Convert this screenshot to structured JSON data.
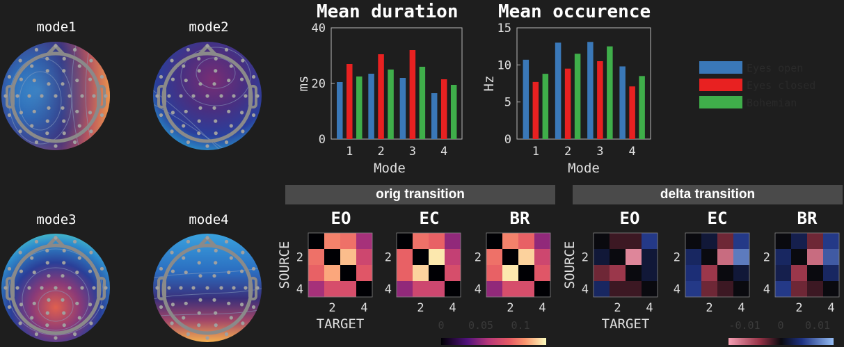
{
  "topomaps": [
    {
      "label": "mode1"
    },
    {
      "label": "mode2"
    },
    {
      "label": "mode3"
    },
    {
      "label": "mode4"
    }
  ],
  "chart_data": [
    {
      "type": "bar",
      "title": "Mean duration",
      "xlabel": "Mode",
      "ylabel": "ms",
      "categories": [
        "1",
        "2",
        "3",
        "4"
      ],
      "ylim": [
        0,
        40
      ],
      "yticks": [
        0,
        20,
        40
      ],
      "series": [
        {
          "name": "Eyes open",
          "color": "#3a78b8",
          "values": [
            20.5,
            23.5,
            22,
            16.5
          ]
        },
        {
          "name": "Eyes closed",
          "color": "#e82121",
          "values": [
            27,
            30.5,
            32,
            21.5
          ]
        },
        {
          "name": "Bohemian",
          "color": "#3fae4a",
          "values": [
            22.5,
            25,
            26,
            19.5
          ]
        }
      ]
    },
    {
      "type": "bar",
      "title": "Mean occurence",
      "xlabel": "Mode",
      "ylabel": "Hz",
      "categories": [
        "1",
        "2",
        "3",
        "4"
      ],
      "ylim": [
        0,
        15
      ],
      "yticks": [
        0,
        5,
        10,
        15
      ],
      "series": [
        {
          "name": "Eyes open",
          "color": "#3a78b8",
          "values": [
            10.7,
            13,
            13.1,
            9.8
          ]
        },
        {
          "name": "Eyes closed",
          "color": "#e82121",
          "values": [
            7.7,
            9.5,
            10.5,
            7.1
          ]
        },
        {
          "name": "Bohemian",
          "color": "#3fae4a",
          "values": [
            8.8,
            11.5,
            12.5,
            8.5
          ]
        }
      ]
    },
    {
      "type": "heatmap",
      "group": "orig transition",
      "title": "EO",
      "xlabel": "TARGET",
      "ylabel": "SOURCE",
      "ticks": [
        "2",
        "4"
      ],
      "matrix": [
        [
          0,
          0.09,
          0.085,
          0.05
        ],
        [
          0.085,
          0,
          0.105,
          0.065
        ],
        [
          0.08,
          0.1,
          0,
          0.075
        ],
        [
          0.05,
          0.07,
          0.07,
          0
        ]
      ]
    },
    {
      "type": "heatmap",
      "group": "orig transition",
      "title": "EC",
      "ticks": [
        "2",
        "4"
      ],
      "matrix": [
        [
          0,
          0.085,
          0.08,
          0.045
        ],
        [
          0.08,
          0,
          0.115,
          0.06
        ],
        [
          0.08,
          0.11,
          0,
          0.07
        ],
        [
          0.045,
          0.065,
          0.065,
          0
        ]
      ]
    },
    {
      "type": "heatmap",
      "group": "orig transition",
      "title": "BR",
      "ticks": [
        "2",
        "4"
      ],
      "matrix": [
        [
          0,
          0.09,
          0.08,
          0.045
        ],
        [
          0.085,
          0,
          0.11,
          0.065
        ],
        [
          0.08,
          0.115,
          0,
          0.075
        ],
        [
          0.045,
          0.07,
          0.07,
          0
        ]
      ]
    },
    {
      "type": "heatmap",
      "group": "delta transition",
      "title": "EO",
      "xlabel": "TARGET",
      "ylabel": "SOURCE",
      "ticks": [
        "2",
        "4"
      ],
      "matrix": [
        [
          0,
          -0.002,
          -0.002,
          0.006
        ],
        [
          0.002,
          0,
          -0.012,
          0.002
        ],
        [
          -0.004,
          -0.006,
          0,
          0.002
        ],
        [
          0.004,
          -0.002,
          -0.002,
          0
        ]
      ]
    },
    {
      "type": "heatmap",
      "group": "delta transition",
      "title": "EC",
      "ticks": [
        "2",
        "4"
      ],
      "matrix": [
        [
          0,
          0.002,
          -0.004,
          0.006
        ],
        [
          0.004,
          0,
          -0.01,
          0.01
        ],
        [
          0.005,
          -0.006,
          0,
          0.002
        ],
        [
          0.006,
          -0.004,
          -0.002,
          0
        ]
      ]
    },
    {
      "type": "heatmap",
      "group": "delta transition",
      "title": "BR",
      "ticks": [
        "2",
        "4"
      ],
      "matrix": [
        [
          0,
          0.003,
          -0.004,
          0.006
        ],
        [
          0.004,
          0,
          -0.01,
          0.008
        ],
        [
          0.003,
          -0.006,
          0,
          0.004
        ],
        [
          0.006,
          -0.004,
          -0.002,
          0
        ]
      ]
    }
  ],
  "legend": [
    "Eyes open",
    "Eyes closed",
    "Bohemian"
  ],
  "banners": {
    "orig": "orig transition",
    "delta": "delta transition"
  },
  "colorbars": {
    "orig_ticks": [
      "0",
      "0.05",
      "0.1"
    ],
    "delta_ticks": [
      "-0.01",
      "0",
      "0.01"
    ]
  },
  "colors": {
    "background": "#1e1e1e",
    "eyes_open": "#3a78b8",
    "eyes_closed": "#e82121",
    "bohemian": "#3fae4a"
  }
}
